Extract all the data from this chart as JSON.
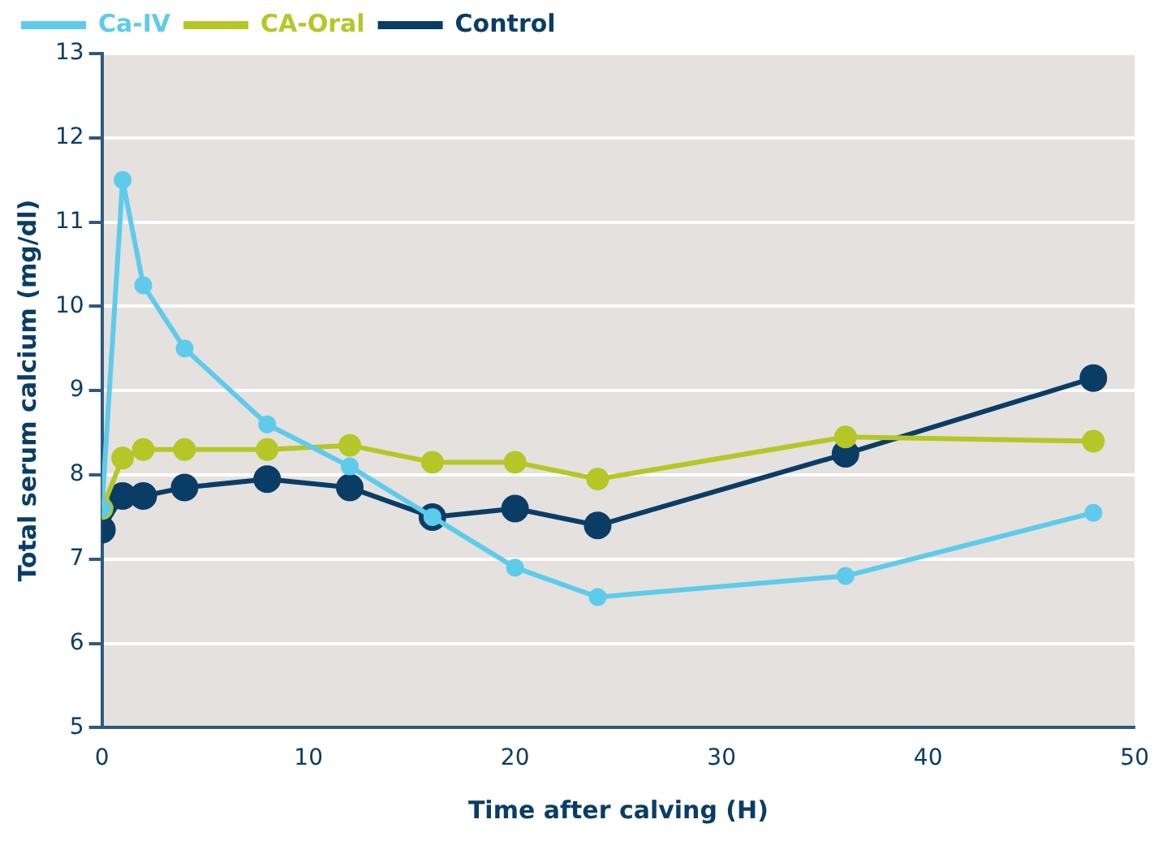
{
  "chart_data": {
    "type": "line",
    "xlabel": "Time after calving (H)",
    "ylabel": "Total serum calcium (mg/dl)",
    "x": [
      0,
      1,
      2,
      4,
      8,
      12,
      16,
      20,
      24,
      36,
      48
    ],
    "series": [
      {
        "name": "Ca-IV",
        "color": "#5ecbeb",
        "values": [
          7.6,
          11.5,
          10.25,
          9.5,
          8.6,
          8.1,
          7.5,
          6.9,
          6.55,
          6.8,
          7.55
        ]
      },
      {
        "name": "CA-Oral",
        "color": "#b5c727",
        "values": [
          7.6,
          8.2,
          8.3,
          8.3,
          8.3,
          8.35,
          8.15,
          8.15,
          7.95,
          8.45,
          8.4
        ]
      },
      {
        "name": "Control",
        "color": "#0a3d66",
        "values": [
          7.35,
          7.75,
          7.75,
          7.85,
          7.95,
          7.85,
          7.5,
          7.6,
          7.4,
          8.25,
          9.15
        ]
      }
    ],
    "xlim": [
      0,
      50
    ],
    "xticks": [
      0,
      10,
      20,
      30,
      40,
      50
    ],
    "ylim": [
      5,
      13
    ],
    "yticks": [
      5,
      6,
      7,
      8,
      9,
      10,
      11,
      12,
      13
    ],
    "grid": "y",
    "legend": "top left",
    "marker": "circle",
    "line_style": "solid"
  }
}
